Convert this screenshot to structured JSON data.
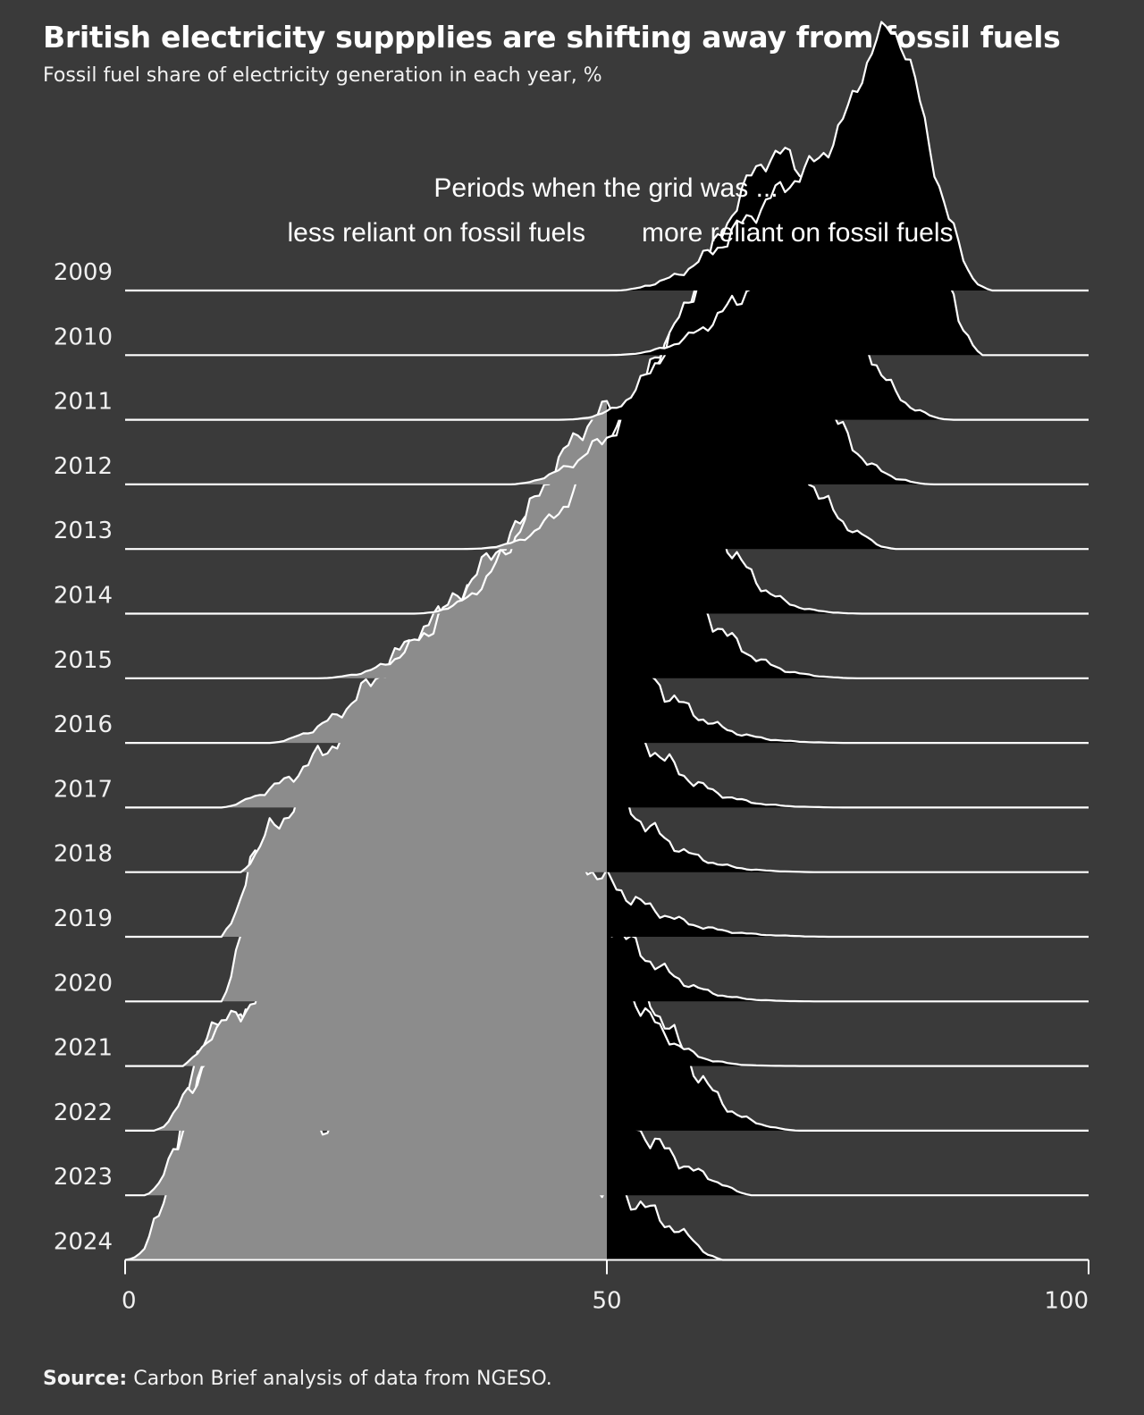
{
  "title": "British electricity suppplies are shifting away from fossil fuels",
  "subtitle": "Fossil fuel share of electricity generation in each year, %",
  "source_label": "Source:",
  "source_text": " Carbon Brief analysis of data from NGESO.",
  "colors": {
    "background": "#3a3a3a",
    "low_fill": "#8c8c8c",
    "high_fill": "#000000",
    "line": "#ffffff"
  },
  "chart_data": {
    "type": "ridgeline",
    "title": "British electricity suppplies are shifting away from fossil fuels",
    "subtitle": "Fossil fuel share of electricity generation in each year, %",
    "xlabel": "",
    "xlim": [
      0,
      100
    ],
    "xticks": [
      0,
      50,
      100
    ],
    "xtick_labels": [
      "0",
      "50",
      "100"
    ],
    "threshold": 50,
    "annotation": {
      "heading": "Periods when the grid was ...",
      "left": "less reliant on fossil fuels",
      "right": "more reliant on fossil fuels"
    },
    "series": [
      {
        "year": "2009",
        "peaks": [
          [
            80,
            1.0,
            3.5
          ],
          [
            73,
            0.55,
            6
          ],
          [
            64,
            0.15,
            5
          ]
        ],
        "min": 51,
        "max": 90
      },
      {
        "year": "2010",
        "peaks": [
          [
            79,
            1.0,
            4.5
          ],
          [
            71,
            0.55,
            5
          ],
          [
            62,
            0.1,
            4
          ]
        ],
        "min": 50,
        "max": 89
      },
      {
        "year": "2011",
        "peaks": [
          [
            70,
            0.95,
            5
          ],
          [
            64,
            0.6,
            5
          ],
          [
            58,
            0.2,
            4
          ]
        ],
        "min": 45,
        "max": 86
      },
      {
        "year": "2012",
        "peaks": [
          [
            66,
            0.85,
            5.5
          ],
          [
            59,
            0.55,
            5
          ],
          [
            50,
            0.12,
            4
          ]
        ],
        "min": 40,
        "max": 84
      },
      {
        "year": "2013",
        "peaks": [
          [
            63,
            0.85,
            6
          ],
          [
            56,
            0.55,
            5
          ],
          [
            48,
            0.18,
            4
          ]
        ],
        "min": 35,
        "max": 80
      },
      {
        "year": "2014",
        "peaks": [
          [
            55,
            0.75,
            6
          ],
          [
            48,
            0.5,
            5
          ],
          [
            42,
            0.2,
            4
          ]
        ],
        "min": 30,
        "max": 77
      },
      {
        "year": "2015",
        "peaks": [
          [
            52,
            0.65,
            7
          ],
          [
            43,
            0.5,
            6
          ],
          [
            35,
            0.2,
            5
          ]
        ],
        "min": 20,
        "max": 76
      },
      {
        "year": "2016",
        "peaks": [
          [
            46,
            0.55,
            8
          ],
          [
            36,
            0.45,
            7
          ],
          [
            28,
            0.15,
            5
          ]
        ],
        "min": 15,
        "max": 75
      },
      {
        "year": "2017",
        "peaks": [
          [
            45,
            0.6,
            8
          ],
          [
            35,
            0.5,
            7
          ],
          [
            24,
            0.25,
            6
          ]
        ],
        "min": 10,
        "max": 75
      },
      {
        "year": "2018",
        "peaks": [
          [
            43,
            0.6,
            8
          ],
          [
            32,
            0.42,
            8
          ],
          [
            20,
            0.25,
            6
          ]
        ],
        "min": 12,
        "max": 72
      },
      {
        "year": "2019",
        "peaks": [
          [
            38,
            0.55,
            10
          ],
          [
            25,
            0.45,
            9
          ],
          [
            17,
            0.2,
            5
          ]
        ],
        "min": 10,
        "max": 73
      },
      {
        "year": "2020",
        "peaks": [
          [
            20,
            0.85,
            7
          ],
          [
            33,
            0.6,
            8
          ],
          [
            46,
            0.4,
            7
          ]
        ],
        "min": 10,
        "max": 72
      },
      {
        "year": "2021",
        "peaks": [
          [
            46,
            0.6,
            6
          ],
          [
            34,
            0.45,
            8
          ],
          [
            18,
            0.38,
            7
          ]
        ],
        "min": 6,
        "max": 72
      },
      {
        "year": "2022",
        "peaks": [
          [
            53,
            0.5,
            5
          ],
          [
            40,
            0.45,
            10
          ],
          [
            24,
            0.35,
            8
          ],
          [
            12,
            0.42,
            4
          ]
        ],
        "min": 3,
        "max": 70
      },
      {
        "year": "2023",
        "peaks": [
          [
            11,
            0.75,
            3.5
          ],
          [
            30,
            0.45,
            12
          ],
          [
            48,
            0.35,
            7
          ]
        ],
        "min": 2,
        "max": 65
      },
      {
        "year": "2024",
        "peaks": [
          [
            9,
            1.05,
            3
          ],
          [
            22,
            0.45,
            8
          ],
          [
            38,
            0.45,
            9
          ],
          [
            52,
            0.18,
            5
          ]
        ],
        "min": 0,
        "max": 62
      }
    ]
  }
}
